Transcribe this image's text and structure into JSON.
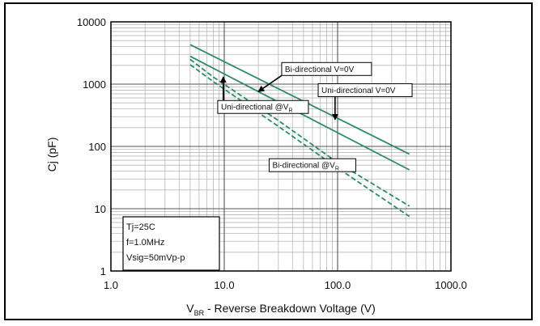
{
  "chart_data": {
    "type": "line",
    "xscale": "log",
    "yscale": "log",
    "xlim": [
      1,
      1000
    ],
    "ylim": [
      1,
      10000
    ],
    "xlabel_main": "V",
    "xlabel_sub": "BR",
    "xlabel_rest": " - Reverse Breakdown Voltage (V)",
    "ylabel": "Cj (pF)",
    "x_ticks": [
      {
        "v": 1,
        "label": "1.0"
      },
      {
        "v": 10,
        "label": "10.0"
      },
      {
        "v": 100,
        "label": "100.0"
      },
      {
        "v": 1000,
        "label": "1000.0"
      }
    ],
    "y_ticks": [
      {
        "v": 1,
        "label": "1"
      },
      {
        "v": 10,
        "label": "10"
      },
      {
        "v": 100,
        "label": "100"
      },
      {
        "v": 1000,
        "label": "1000"
      },
      {
        "v": 10000,
        "label": "10000"
      }
    ],
    "grid": true,
    "color": "#2e8b62",
    "series": [
      {
        "name": "Bi-directional V=0V",
        "style": "solid",
        "x": [
          5,
          430
        ],
        "y": [
          4300,
          75
        ]
      },
      {
        "name": "Uni-directional V=0V",
        "style": "solid",
        "x": [
          5,
          430
        ],
        "y": [
          2800,
          42
        ]
      },
      {
        "name": "Uni-directional @V_R",
        "style": "dashed",
        "x": [
          5,
          8,
          30,
          100,
          430
        ],
        "y": [
          2500,
          1300,
          260,
          55,
          11
        ]
      },
      {
        "name": "Bi-directional @V_R",
        "style": "dashed",
        "x": [
          5,
          8,
          30,
          100,
          430
        ],
        "y": [
          2050,
          1100,
          210,
          45,
          7.5
        ]
      }
    ],
    "annotations": [
      {
        "text": "Bi-directional V=0V",
        "sub": "",
        "box_at": [
          80,
          1750
        ],
        "arrow_to": [
          20,
          760
        ]
      },
      {
        "text": "Uni-directional V=0V",
        "sub": "",
        "box_at": [
          175,
          800
        ],
        "arrow_to": [
          95,
          270
        ]
      },
      {
        "text": "Uni-directional @V",
        "sub": "R",
        "box_at": [
          22,
          430
        ],
        "arrow_to": [
          9.8,
          1300
        ]
      },
      {
        "text": "Bi-directional @V",
        "sub": "R",
        "box_at": [
          60,
          50
        ],
        "arrow_to": [
          87,
          65
        ]
      }
    ],
    "condition_box": [
      "Tj=25C",
      "f=1.0MHz",
      "Vsig=50mVp-p"
    ]
  }
}
